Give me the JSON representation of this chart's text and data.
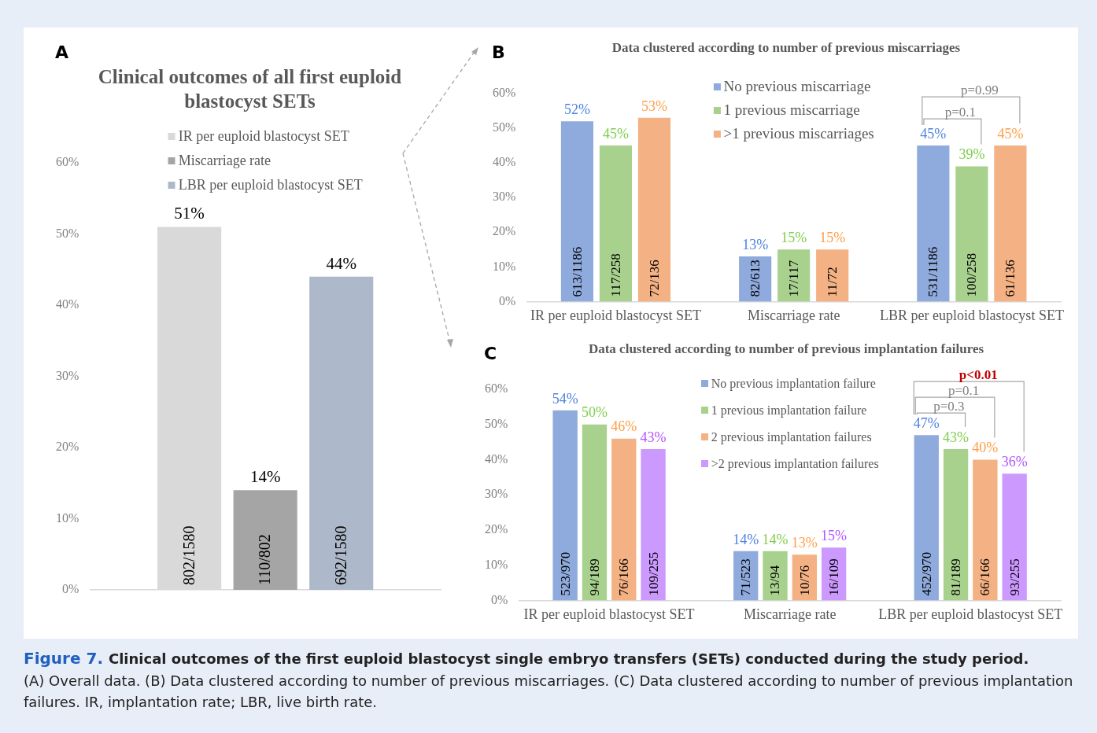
{
  "chart_data": [
    {
      "type": "bar",
      "title": "Clinical outcomes of all first euploid blastocyst SETs",
      "categories": [
        null
      ],
      "legend": "top",
      "ylim": [
        0,
        60
      ],
      "yticks": [
        {
          "value": 0,
          "label": "0%"
        },
        {
          "value": 10,
          "label": "10%"
        },
        {
          "value": 20,
          "label": "20%"
        },
        {
          "value": 30,
          "label": "30%"
        },
        {
          "value": 40,
          "label": "40%"
        },
        {
          "value": 50,
          "label": "50%"
        },
        {
          "value": 60,
          "label": "60%"
        }
      ],
      "series": [
        {
          "name": "IR per euploid blastocyst SET",
          "color": "#d9d9d9",
          "values": [
            51
          ],
          "value_labels": [
            "51%"
          ]
        },
        {
          "name": "Miscarriage rate",
          "color": "#a5a5a5",
          "values": [
            14
          ],
          "value_labels": [
            "14%"
          ]
        },
        {
          "name": "LBR per euploid blastocyst SET",
          "color": "#adb9ca",
          "values": [
            44
          ],
          "value_labels": [
            "44%"
          ]
        }
      ],
      "annotations": [
        "A",
        {
          "text": "802/1580",
          "y": 0
        },
        {
          "text": "110/802",
          "y": 0
        },
        {
          "text": "692/1580",
          "y": 0
        }
      ]
    },
    {
      "type": "bar",
      "title": "Data clustered according to number of previous miscarriages",
      "categories": [
        "IR per euploid blastocyst SET",
        "Miscarriage rate",
        "LBR per euploid blastocyst SET"
      ],
      "legend": "top",
      "ylim": [
        0,
        60
      ],
      "yticks": [
        {
          "value": 0,
          "label": "0%"
        },
        {
          "value": 10,
          "label": "10%"
        },
        {
          "value": 20,
          "label": "20%"
        },
        {
          "value": 30,
          "label": "30%"
        },
        {
          "value": 40,
          "label": "40%"
        },
        {
          "value": 50,
          "label": "50%"
        },
        {
          "value": 60,
          "label": "60%"
        }
      ],
      "series": [
        {
          "name": "No previous miscarriage",
          "color": "#8faadc",
          "values": [
            52,
            13,
            45
          ],
          "value_labels": [
            "52%",
            "13%",
            "45%"
          ]
        },
        {
          "name": "1 previous miscarriage",
          "color": "#a9d18e",
          "values": [
            45,
            15,
            39
          ],
          "value_labels": [
            "45%",
            "15%",
            "39%"
          ]
        },
        {
          "name": ">1 previous miscarriages",
          "color": "#f4b183",
          "values": [
            53,
            15,
            45
          ],
          "value_labels": [
            "53%",
            "15%",
            "45%"
          ]
        }
      ],
      "annotations": [
        "B",
        "p=0.1",
        "p=0.99",
        {
          "text": "613/1186",
          "x": "IR per euploid blastocyst SET",
          "y": 0
        },
        {
          "text": "117/258",
          "x": "IR per euploid blastocyst SET",
          "y": 0
        },
        {
          "text": "72/136",
          "x": "IR per euploid blastocyst SET",
          "y": 0
        },
        {
          "text": "82/613",
          "x": "Miscarriage rate",
          "y": 0
        },
        {
          "text": "17/117",
          "x": "Miscarriage rate",
          "y": 0
        },
        {
          "text": "11/72",
          "x": "Miscarriage rate",
          "y": 0
        },
        {
          "text": "531/1186",
          "x": "LBR per euploid blastocyst SET",
          "y": 0
        },
        {
          "text": "100/258",
          "x": "LBR per euploid blastocyst SET",
          "y": 0
        },
        {
          "text": "61/136",
          "x": "LBR per euploid blastocyst SET",
          "y": 0
        }
      ]
    },
    {
      "type": "bar",
      "title": "Data clustered according to number of previous implantation failures",
      "categories": [
        "IR per euploid blastocyst SET",
        "Miscarriage rate",
        "LBR per euploid blastocyst SET"
      ],
      "legend": "top",
      "ylim": [
        0,
        60
      ],
      "yticks": [
        {
          "value": 0,
          "label": "0%"
        },
        {
          "value": 10,
          "label": "10%"
        },
        {
          "value": 20,
          "label": "20%"
        },
        {
          "value": 30,
          "label": "30%"
        },
        {
          "value": 40,
          "label": "40%"
        },
        {
          "value": 50,
          "label": "50%"
        },
        {
          "value": 60,
          "label": "60%"
        }
      ],
      "series": [
        {
          "name": "No previous implantation failure",
          "color": "#8faadc",
          "values": [
            54,
            14,
            47
          ],
          "value_labels": [
            "54%",
            "14%",
            "47%"
          ]
        },
        {
          "name": "1 previous implantation failure",
          "color": "#a9d18e",
          "values": [
            50,
            14,
            43
          ],
          "value_labels": [
            "50%",
            "14%",
            "43%"
          ]
        },
        {
          "name": "2 previous implantation failures",
          "color": "#f4b183",
          "values": [
            46,
            13,
            40
          ],
          "value_labels": [
            "46%",
            "13%",
            "40%"
          ]
        },
        {
          "name": ">2 previous implantation failures",
          "color": "#cc99ff",
          "values": [
            43,
            15,
            36
          ],
          "value_labels": [
            "43%",
            "15%",
            "36%"
          ]
        }
      ],
      "annotations": [
        "C",
        "p=0.3",
        "p=0.1",
        "p<0.01",
        {
          "text": "523/970",
          "x": "IR per euploid blastocyst SET",
          "y": 0
        },
        {
          "text": "94/189",
          "x": "IR per euploid blastocyst SET",
          "y": 0
        },
        {
          "text": "76/166",
          "x": "IR per euploid blastocyst SET",
          "y": 0
        },
        {
          "text": "109/255",
          "x": "IR per euploid blastocyst SET",
          "y": 0
        },
        {
          "text": "71/523",
          "x": "Miscarriage rate",
          "y": 0
        },
        {
          "text": "13/94",
          "x": "Miscarriage rate",
          "y": 0
        },
        {
          "text": "10/76",
          "x": "Miscarriage rate",
          "y": 0
        },
        {
          "text": "16/109",
          "x": "Miscarriage rate",
          "y": 0
        },
        {
          "text": "452/970",
          "x": "LBR per euploid blastocyst SET",
          "y": 0
        },
        {
          "text": "81/189",
          "x": "LBR per euploid blastocyst SET",
          "y": 0
        },
        {
          "text": "66/166",
          "x": "LBR per euploid blastocyst SET",
          "y": 0
        },
        {
          "text": "93/255",
          "x": "LBR per euploid blastocyst SET",
          "y": 0
        }
      ]
    },
    {
      "type": "other",
      "annotations": [
        "Figure 7.",
        "Clinical outcomes of the first euploid blastocyst single embryo transfers (SETs) conducted during the study period.",
        "(A) Overall data. (B) Data clustered according to number of previous miscarriages. (C) Data clustered according to number of previous implantation failures. IR, implantation rate; LBR, live birth rate."
      ]
    }
  ]
}
